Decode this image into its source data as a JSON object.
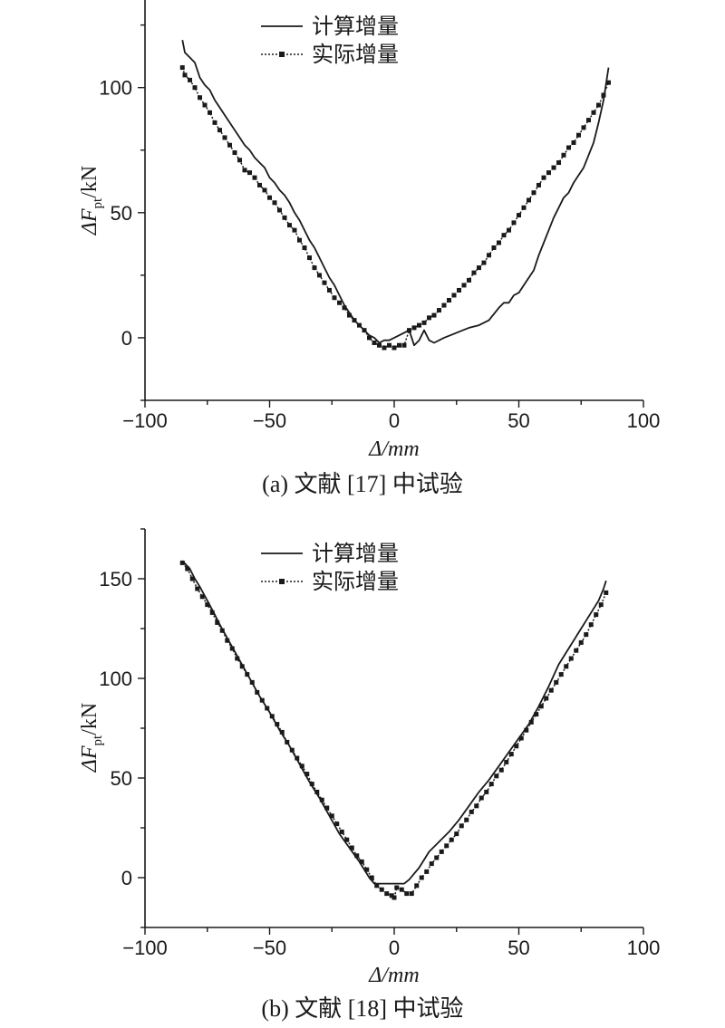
{
  "chart_data": [
    {
      "type": "line",
      "caption": "(a) 文献 [17] 中试验",
      "xlabel": "Δ/mm",
      "ylabel_main": "ΔF",
      "ylabel_sub": "pt",
      "ylabel_unit": "/kN",
      "xlim": [
        -100,
        100
      ],
      "ylim": [
        -25,
        135
      ],
      "xticks": [
        -100,
        -50,
        0,
        50,
        100
      ],
      "xtick_labels": [
        "−100",
        "−50",
        "0",
        "50",
        "100"
      ],
      "yticks": [
        0,
        50,
        100
      ],
      "ytick_labels": [
        "0",
        "50",
        "100"
      ],
      "legend_position": "top-center",
      "grid": false,
      "series": [
        {
          "name": "计算增量",
          "style": "solid",
          "x": [
            -85,
            -84,
            -82,
            -80,
            -78,
            -76,
            -74,
            -72,
            -70,
            -68,
            -66,
            -64,
            -62,
            -60,
            -58,
            -56,
            -54,
            -52,
            -50,
            -48,
            -46,
            -44,
            -42,
            -40,
            -38,
            -36,
            -34,
            -32,
            -30,
            -28,
            -26,
            -24,
            -22,
            -20,
            -18,
            -16,
            -14,
            -12,
            -10,
            -8,
            -6,
            -4,
            -2,
            0,
            2,
            4,
            6,
            8,
            10,
            12,
            14,
            16,
            20,
            25,
            30,
            34,
            38,
            42,
            44,
            46,
            48,
            50,
            52,
            54,
            56,
            58,
            60,
            62,
            64,
            66,
            68,
            70,
            72,
            74,
            76,
            78,
            80,
            82,
            84,
            86
          ],
          "y": [
            119,
            114,
            112,
            110,
            104,
            101,
            99,
            95,
            92,
            89,
            86,
            83,
            80,
            77,
            75,
            72,
            70,
            68,
            64,
            62,
            59,
            57,
            54,
            50,
            47,
            43,
            39,
            36,
            32,
            28,
            24,
            21,
            17,
            13,
            10,
            7,
            5,
            3,
            1,
            0,
            -2,
            -1,
            -1,
            0,
            1,
            2,
            3,
            -3,
            -1,
            3,
            -1,
            -2,
            0,
            2,
            4,
            5,
            7,
            12,
            14,
            14,
            17,
            18,
            21,
            24,
            27,
            33,
            38,
            43,
            48,
            52,
            56,
            58,
            62,
            65,
            68,
            73,
            78,
            86,
            95,
            108
          ]
        },
        {
          "name": "实际增量",
          "style": "dotted-square",
          "x": [
            -85,
            -84,
            -82,
            -80,
            -78,
            -76,
            -74,
            -72,
            -70,
            -68,
            -66,
            -64,
            -62,
            -60,
            -58,
            -56,
            -54,
            -52,
            -50,
            -48,
            -46,
            -44,
            -42,
            -40,
            -38,
            -36,
            -34,
            -32,
            -30,
            -28,
            -26,
            -24,
            -22,
            -20,
            -18,
            -16,
            -14,
            -12,
            -10,
            -8,
            -6,
            -4,
            -2,
            0,
            2,
            4,
            6,
            8,
            10,
            12,
            14,
            16,
            18,
            20,
            22,
            24,
            26,
            28,
            30,
            32,
            34,
            36,
            38,
            40,
            42,
            44,
            46,
            48,
            50,
            52,
            54,
            56,
            58,
            60,
            62,
            64,
            66,
            68,
            70,
            72,
            74,
            76,
            78,
            80,
            82,
            84,
            86
          ],
          "y": [
            108,
            105,
            103,
            100,
            96,
            93,
            90,
            86,
            83,
            80,
            77,
            74,
            71,
            67,
            66,
            64,
            61,
            59,
            56,
            54,
            51,
            48,
            45,
            43,
            39,
            36,
            32,
            28,
            25,
            22,
            19,
            16,
            14,
            12,
            9,
            7,
            5,
            3,
            0,
            -2,
            -3,
            -4,
            -3,
            -4,
            -3,
            -3,
            3,
            4,
            5,
            6,
            8,
            9,
            11,
            13,
            15,
            17,
            19,
            21,
            23,
            26,
            28,
            30,
            33,
            36,
            38,
            41,
            43,
            46,
            49,
            52,
            55,
            58,
            61,
            64,
            66,
            68,
            70,
            73,
            76,
            78,
            81,
            84,
            87,
            90,
            93,
            97,
            102
          ]
        }
      ]
    },
    {
      "type": "line",
      "caption": "(b) 文献 [18] 中试验",
      "xlabel": "Δ/mm",
      "ylabel_main": "ΔF",
      "ylabel_sub": "pt",
      "ylabel_unit": "/kN",
      "xlim": [
        -100,
        100
      ],
      "ylim": [
        -25,
        175
      ],
      "xticks": [
        -100,
        -50,
        0,
        50,
        100
      ],
      "xtick_labels": [
        "−100",
        "−50",
        "0",
        "50",
        "100"
      ],
      "yticks": [
        0,
        50,
        100,
        150
      ],
      "ytick_labels": [
        "0",
        "50",
        "100",
        "150"
      ],
      "legend_position": "top-center",
      "grid": false,
      "series": [
        {
          "name": "计算增量",
          "style": "solid",
          "x": [
            -85,
            -82,
            -80,
            -78,
            -75,
            -72,
            -70,
            -66,
            -62,
            -58,
            -54,
            -50,
            -46,
            -42,
            -38,
            -34,
            -30,
            -26,
            -22,
            -18,
            -14,
            -10,
            -8,
            -6,
            -4,
            -2,
            0,
            2,
            4,
            6,
            8,
            10,
            14,
            18,
            22,
            26,
            30,
            34,
            38,
            42,
            46,
            50,
            54,
            58,
            62,
            66,
            70,
            74,
            78,
            82,
            84,
            85
          ],
          "y": [
            159,
            155,
            150,
            146,
            139,
            132,
            127,
            118,
            109,
            100,
            91,
            83,
            74,
            66,
            57,
            48,
            40,
            31,
            22,
            15,
            8,
            0,
            -3,
            -3,
            -3,
            -3,
            -3,
            -3,
            -3,
            -1,
            2,
            5,
            13,
            18,
            23,
            29,
            36,
            43,
            49,
            56,
            63,
            70,
            77,
            86,
            96,
            107,
            115,
            123,
            131,
            139,
            145,
            149
          ]
        },
        {
          "name": "实际增量",
          "style": "dotted-square",
          "x": [
            -85,
            -83,
            -81,
            -79,
            -77,
            -75,
            -73,
            -71,
            -69,
            -67,
            -65,
            -63,
            -61,
            -59,
            -57,
            -55,
            -53,
            -51,
            -49,
            -47,
            -45,
            -43,
            -41,
            -39,
            -37,
            -35,
            -33,
            -31,
            -29,
            -27,
            -25,
            -23,
            -21,
            -19,
            -17,
            -15,
            -13,
            -11,
            -9,
            -7,
            -5,
            -3,
            -1,
            0,
            1,
            3,
            5,
            7,
            9,
            11,
            13,
            15,
            17,
            19,
            21,
            23,
            25,
            27,
            29,
            31,
            33,
            35,
            37,
            39,
            41,
            43,
            45,
            47,
            49,
            51,
            53,
            55,
            57,
            59,
            61,
            63,
            65,
            67,
            69,
            71,
            73,
            75,
            77,
            79,
            81,
            83,
            85
          ],
          "y": [
            158,
            155,
            150,
            145,
            141,
            137,
            133,
            128,
            124,
            119,
            115,
            110,
            106,
            102,
            98,
            93,
            89,
            85,
            81,
            77,
            73,
            68,
            64,
            60,
            56,
            52,
            47,
            43,
            39,
            35,
            31,
            27,
            23,
            19,
            15,
            11,
            8,
            4,
            0,
            -4,
            -6,
            -8,
            -9,
            -10,
            -5,
            -6,
            -8,
            -8,
            -4,
            0,
            3,
            7,
            10,
            13,
            16,
            19,
            22,
            26,
            29,
            33,
            36,
            40,
            43,
            47,
            51,
            54,
            58,
            62,
            66,
            70,
            74,
            78,
            82,
            86,
            90,
            94,
            98,
            102,
            106,
            110,
            114,
            118,
            122,
            127,
            132,
            137,
            143
          ]
        }
      ]
    }
  ]
}
